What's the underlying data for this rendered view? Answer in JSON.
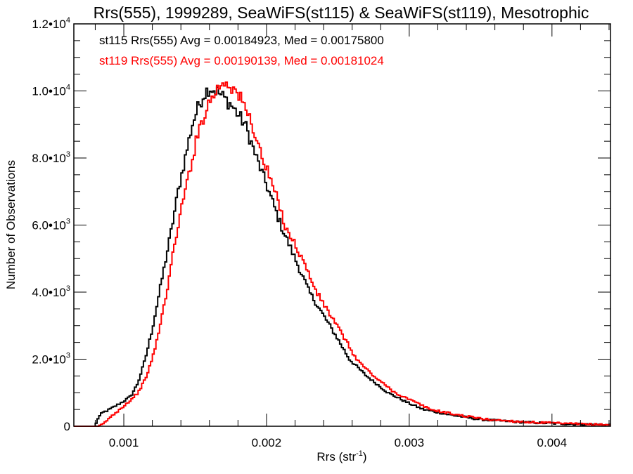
{
  "chart_data": {
    "type": "line",
    "style": "histogram-step",
    "title": "Rrs(555), 1999289, SeaWiFS(st115) & SeaWiFS(st119), Mesotrophic",
    "xlabel": "Rrs (str",
    "xlabel_superscript": "-1",
    "xlabel_suffix": ")",
    "ylabel": "Number of Observations",
    "xlim": [
      0.00065,
      0.00441
    ],
    "ylim": [
      0,
      12000
    ],
    "grid": false,
    "legend_placement": "top-left",
    "x_ticks": [
      {
        "value": 0.001,
        "label": "0.001"
      },
      {
        "value": 0.002,
        "label": "0.002"
      },
      {
        "value": 0.003,
        "label": "0.003"
      },
      {
        "value": 0.004,
        "label": "0.004"
      }
    ],
    "x_minor_step": 0.0002,
    "y_ticks": [
      {
        "value": 0,
        "mant": "0",
        "exp": ""
      },
      {
        "value": 2000,
        "mant": "2.0•10",
        "exp": "3"
      },
      {
        "value": 4000,
        "mant": "4.0•10",
        "exp": "3"
      },
      {
        "value": 6000,
        "mant": "6.0•10",
        "exp": "3"
      },
      {
        "value": 8000,
        "mant": "8.0•10",
        "exp": "3"
      },
      {
        "value": 10000,
        "mant": "1.0•10",
        "exp": "4"
      },
      {
        "value": 12000,
        "mant": "1.2•10",
        "exp": "4"
      }
    ],
    "y_minor_step": 500,
    "series": [
      {
        "name": "st115",
        "color": "#000000",
        "legend": "st115 Rrs(555) Avg = 0.00184923, Med = 0.00175800",
        "avg": 0.00184923,
        "median": 0.001758,
        "anchors_x": [
          0.0008,
          0.00082,
          0.00085,
          0.0009,
          0.001,
          0.00105,
          0.0011,
          0.00115,
          0.0012,
          0.00125,
          0.0013,
          0.00134,
          0.00138,
          0.00143,
          0.00148,
          0.00152,
          0.00156,
          0.0016,
          0.00165,
          0.0017,
          0.00175,
          0.0018,
          0.00185,
          0.00193,
          0.002,
          0.0021,
          0.0022,
          0.0023,
          0.0024,
          0.0025,
          0.00258,
          0.0027,
          0.00285,
          0.003,
          0.0031,
          0.0033,
          0.0035,
          0.0038,
          0.0041,
          0.00441
        ],
        "anchors_y": [
          0,
          250,
          400,
          500,
          750,
          900,
          1300,
          2000,
          2900,
          4000,
          5100,
          6000,
          7000,
          8000,
          9000,
          9500,
          9900,
          10100,
          10000,
          9800,
          9600,
          9300,
          9000,
          8000,
          7200,
          6000,
          5000,
          4000,
          3300,
          2600,
          2000,
          1500,
          1000,
          680,
          500,
          330,
          200,
          120,
          70,
          40
        ]
      },
      {
        "name": "st119",
        "color": "#ff0000",
        "legend": "st119 Rrs(555) Avg = 0.00190139, Med = 0.00181024",
        "avg": 0.00190139,
        "median": 0.00181024,
        "anchors_x": [
          0.00083,
          0.00086,
          0.0009,
          0.00097,
          0.00104,
          0.0011,
          0.00115,
          0.0012,
          0.00125,
          0.0013,
          0.00134,
          0.00138,
          0.00143,
          0.00148,
          0.00153,
          0.00158,
          0.00163,
          0.00168,
          0.00172,
          0.00176,
          0.0018,
          0.00185,
          0.0019,
          0.00197,
          0.00205,
          0.00213,
          0.00225,
          0.00235,
          0.00245,
          0.00255,
          0.00263,
          0.00275,
          0.0029,
          0.00305,
          0.00315,
          0.00335,
          0.00355,
          0.00385,
          0.00415,
          0.00441
        ],
        "anchors_y": [
          0,
          80,
          250,
          500,
          750,
          1000,
          1400,
          2000,
          2900,
          4000,
          5000,
          6000,
          7000,
          8000,
          8900,
          9500,
          9900,
          10200,
          10300,
          10100,
          9900,
          9500,
          9000,
          8000,
          7100,
          6000,
          5000,
          4000,
          3300,
          2600,
          2000,
          1500,
          1000,
          700,
          500,
          330,
          200,
          120,
          70,
          40
        ]
      }
    ]
  }
}
